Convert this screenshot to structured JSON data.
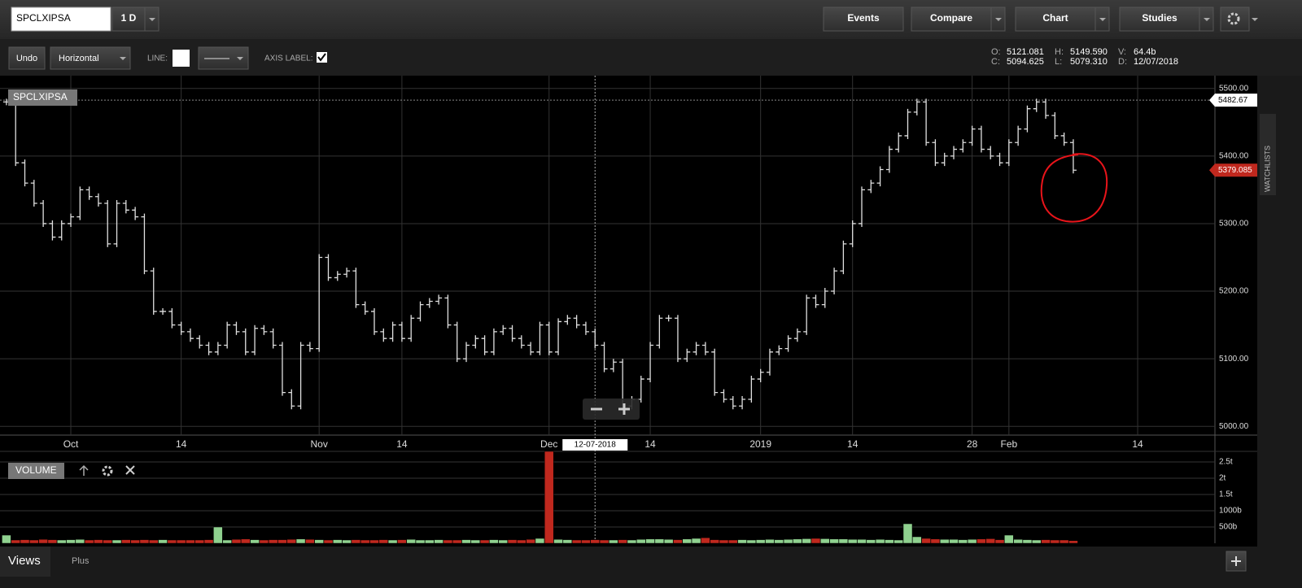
{
  "toolbar": {
    "symbol": "SPCLXIPSA",
    "interval": "1 D",
    "buttons": [
      "Events",
      "Compare",
      "Chart",
      "Studies"
    ]
  },
  "drawing_bar": {
    "undo": "Undo",
    "tool": "Horizontal",
    "line_label": "LINE:",
    "axis_label": "AXIS LABEL:"
  },
  "ohlc": [
    {
      "label": "O:",
      "value": "5121.081"
    },
    {
      "label": "H:",
      "value": "5149.590"
    },
    {
      "label": "V:",
      "value": "64.4b"
    },
    {
      "label": "C:",
      "value": "5094.625"
    },
    {
      "label": "L:",
      "value": "5079.310"
    },
    {
      "label": "D:",
      "value": "12/07/2018"
    }
  ],
  "chart_data": {
    "type": "ohlc",
    "title": "SPCLXIPSA",
    "color": "#e0e0e0",
    "values": [
      5480,
      5390,
      5360,
      5330,
      5300,
      5280,
      5300,
      5310,
      5350,
      5340,
      5330,
      5270,
      5330,
      5320,
      5310,
      5230,
      5170,
      5170,
      5150,
      5140,
      5130,
      5120,
      5110,
      5120,
      5150,
      5140,
      5110,
      5145,
      5140,
      5120,
      5050,
      5030,
      5120,
      5115,
      5250,
      5220,
      5225,
      5230,
      5180,
      5170,
      5140,
      5130,
      5150,
      5130,
      5160,
      5180,
      5185,
      5190,
      5150,
      5100,
      5120,
      5130,
      5110,
      5140,
      5145,
      5130,
      5120,
      5110,
      5150,
      5110,
      5155,
      5160,
      5150,
      5140,
      5120,
      5085,
      5095,
      5030,
      5040,
      5070,
      5120,
      5160,
      5160,
      5100,
      5110,
      5120,
      5110,
      5050,
      5040,
      5030,
      5040,
      5070,
      5080,
      5110,
      5115,
      5130,
      5140,
      5190,
      5180,
      5200,
      5230,
      5270,
      5300,
      5350,
      5360,
      5380,
      5410,
      5430,
      5465,
      5480,
      5420,
      5390,
      5400,
      5410,
      5420,
      5440,
      5410,
      5400,
      5390,
      5420,
      5440,
      5470,
      5480,
      5460,
      5430,
      5420,
      5379.085
    ],
    "xlim": [
      -0.7,
      131.4
    ],
    "xticks": [
      {
        "value": 7,
        "label": "Oct"
      },
      {
        "value": 19,
        "label": "14"
      },
      {
        "value": 34,
        "label": "Nov"
      },
      {
        "value": 43,
        "label": "14"
      },
      {
        "value": 59,
        "label": "Dec"
      },
      {
        "value": 70,
        "label": "14"
      },
      {
        "value": 82,
        "label": "2019"
      },
      {
        "value": 92,
        "label": "14"
      },
      {
        "value": 105,
        "label": "28"
      },
      {
        "value": 109,
        "label": "Feb"
      },
      {
        "value": 123,
        "label": "14"
      }
    ],
    "ylim": [
      4987,
      5519
    ],
    "yticks": [
      {
        "value": 5000,
        "label": "5000.00"
      },
      {
        "value": 5100,
        "label": "5100.00"
      },
      {
        "value": 5200,
        "label": "5200.00"
      },
      {
        "value": 5300,
        "label": "5300.00"
      },
      {
        "value": 5400,
        "label": "5400.00"
      },
      {
        "value": 5500,
        "label": "5500.00"
      }
    ],
    "grid": true,
    "price_tags": [
      {
        "value": 5482.67,
        "label": "5482.67",
        "color": "#ffffff"
      },
      {
        "value": 5379.085,
        "label": "5379.085",
        "color": "#c0281e"
      }
    ],
    "crosshair": {
      "value": 64,
      "label": "12-07-2018"
    },
    "volume": {
      "title": "VOLUME",
      "up_color": "#8fd18f",
      "down_color": "#c0281e",
      "values": [
        250,
        100,
        110,
        100,
        120,
        110,
        100,
        110,
        120,
        100,
        110,
        100,
        100,
        110,
        100,
        110,
        100,
        110,
        100,
        100,
        100,
        100,
        110,
        500,
        100,
        120,
        130,
        110,
        100,
        110,
        110,
        120,
        130,
        120,
        110,
        100,
        110,
        100,
        110,
        100,
        100,
        110,
        100,
        110,
        120,
        100,
        100,
        110,
        100,
        100,
        110,
        100,
        100,
        110,
        100,
        110,
        100,
        120,
        150,
        2825,
        120,
        110,
        100,
        100,
        110,
        100,
        100,
        110,
        100,
        120,
        130,
        130,
        120,
        110,
        130,
        150,
        170,
        110,
        100,
        100,
        110,
        100,
        110,
        120,
        110,
        120,
        130,
        140,
        150,
        140,
        130,
        130,
        120,
        120,
        110,
        120,
        110,
        100,
        600,
        200,
        150,
        130,
        120,
        120,
        110,
        120,
        130,
        140,
        110,
        250,
        120,
        110,
        100,
        110,
        100,
        100,
        80
      ],
      "ylim": [
        0,
        2825
      ],
      "yticks": [
        {
          "value": 500,
          "label": "500b"
        },
        {
          "value": 1000,
          "label": "1000b"
        },
        {
          "value": 1500,
          "label": "1.5t"
        },
        {
          "value": 2000,
          "label": "2t"
        },
        {
          "value": 2500,
          "label": "2.5t"
        }
      ]
    }
  },
  "side_tab": "WATCHLISTS",
  "footer": {
    "views": "Views",
    "plus": "Plus"
  }
}
